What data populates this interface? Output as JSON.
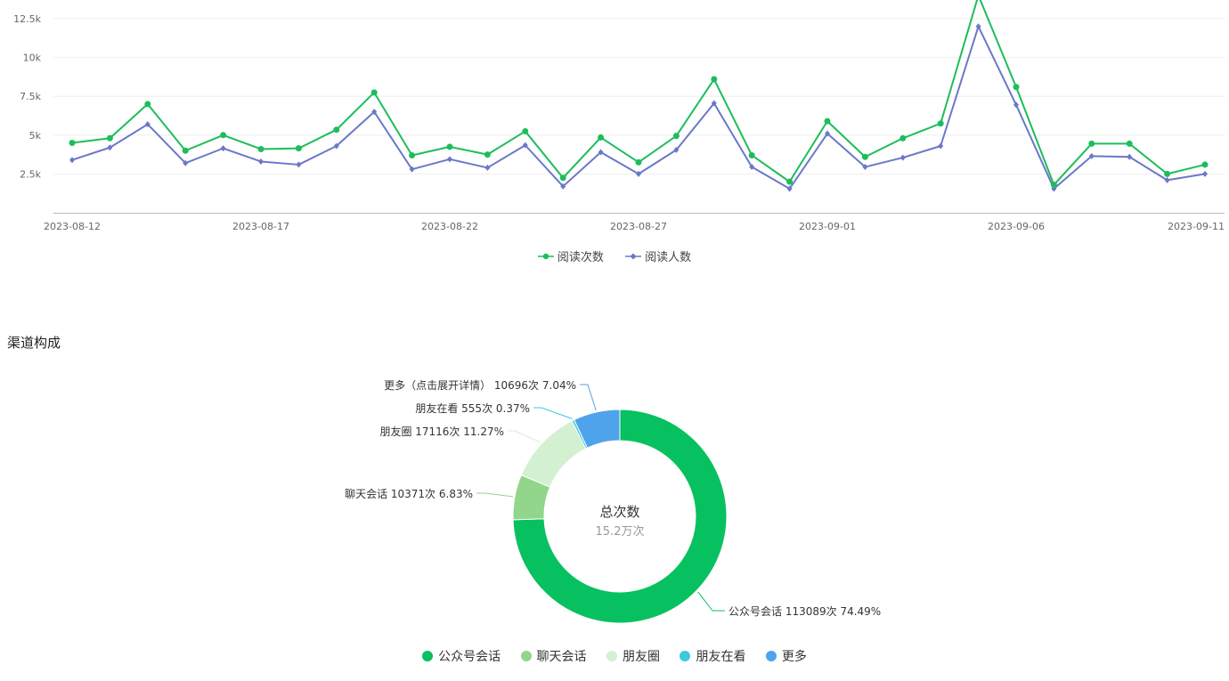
{
  "colors": {
    "read_count": "#1dbd5c",
    "read_users": "#6b78c8",
    "slices": [
      "#07c160",
      "#91d68a",
      "#d3f0d1",
      "#3ec9e0",
      "#4fa3ea"
    ]
  },
  "line_legend": [
    "阅读次数",
    "阅读人数"
  ],
  "section_title": "渠道构成",
  "donut_center": {
    "title": "总次数",
    "value": "15.2万次"
  },
  "chart_data": [
    {
      "type": "line",
      "x_ticks": [
        "2023-08-12",
        "2023-08-17",
        "2023-08-22",
        "2023-08-27",
        "2023-09-01",
        "2023-09-06",
        "2023-09-11"
      ],
      "y_ticks": [
        "2.5k",
        "5k",
        "7.5k",
        "10k",
        "12.5k"
      ],
      "ylim": [
        0,
        14000
      ],
      "x": [
        "2023-08-12",
        "2023-08-13",
        "2023-08-14",
        "2023-08-15",
        "2023-08-16",
        "2023-08-17",
        "2023-08-18",
        "2023-08-19",
        "2023-08-20",
        "2023-08-21",
        "2023-08-22",
        "2023-08-23",
        "2023-08-24",
        "2023-08-25",
        "2023-08-26",
        "2023-08-27",
        "2023-08-28",
        "2023-08-29",
        "2023-08-30",
        "2023-08-31",
        "2023-09-01",
        "2023-09-02",
        "2023-09-03",
        "2023-09-04",
        "2023-09-05",
        "2023-09-06",
        "2023-09-07",
        "2023-09-08",
        "2023-09-09",
        "2023-09-10",
        "2023-09-11"
      ],
      "series": [
        {
          "name": "阅读次数",
          "values": [
            4500,
            4800,
            7000,
            4000,
            5000,
            4100,
            4150,
            5350,
            7750,
            3700,
            4250,
            3750,
            5250,
            2250,
            4850,
            3250,
            4950,
            8600,
            3700,
            2000,
            5900,
            3600,
            4800,
            5750,
            14000,
            8100,
            1800,
            4450,
            4450,
            2500,
            3100
          ]
        },
        {
          "name": "阅读人数",
          "values": [
            3400,
            4200,
            5700,
            3200,
            4150,
            3300,
            3100,
            4300,
            6500,
            2800,
            3450,
            2900,
            4350,
            1700,
            3900,
            2500,
            4050,
            7050,
            2950,
            1550,
            5100,
            2950,
            3550,
            4300,
            12000,
            6950,
            1550,
            3650,
            3600,
            2100,
            2500
          ]
        }
      ],
      "grid": true,
      "legend": "bottom"
    },
    {
      "type": "pie",
      "labels": [
        "公众号会话",
        "聊天会话",
        "朋友圈",
        "朋友在看",
        "更多"
      ],
      "values": [
        113089,
        10371,
        17116,
        555,
        10696
      ],
      "percents": [
        "74.49%",
        "6.83%",
        "11.27%",
        "0.37%",
        "7.04%"
      ],
      "slice_labels": [
        "公众号会话 113089次 74.49%",
        "聊天会话 10371次 6.83%",
        "朋友圈 17116次 11.27%",
        "朋友在看 555次 0.37%",
        "更多（点击展开详情） 10696次 7.04%"
      ],
      "legend": "bottom"
    }
  ]
}
